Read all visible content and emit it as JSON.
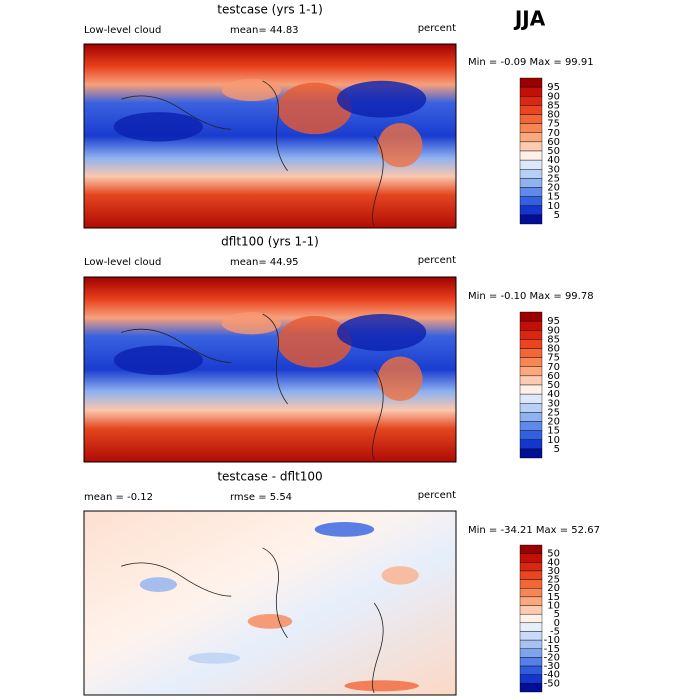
{
  "season": "JJA",
  "panels": [
    {
      "title": "testcase (yrs 1-1)",
      "left": "Low-level cloud",
      "center": "mean=  44.83",
      "units": "percent",
      "minmax": "Min =  -0.09 Max =  99.91",
      "colorbar": {
        "labels": [
          "95",
          "90",
          "85",
          "80",
          "75",
          "70",
          "60",
          "50",
          "40",
          "30",
          "25",
          "20",
          "15",
          "10",
          "5"
        ],
        "colors": [
          "#9b0000",
          "#c20f08",
          "#d92812",
          "#ea4520",
          "#f26638",
          "#f68656",
          "#faa97f",
          "#fccbb2",
          "#fff1e8",
          "#dde8fa",
          "#b9d0f5",
          "#8fb2f0",
          "#5f8ae9",
          "#3260e0",
          "#1535cf",
          "#000f96"
        ]
      }
    },
    {
      "title": "dflt100 (yrs 1-1)",
      "left": "Low-level cloud",
      "center": "mean=  44.95",
      "units": "percent",
      "minmax": "Min =  -0.10 Max =  99.78",
      "colorbar": {
        "labels": [
          "95",
          "90",
          "85",
          "80",
          "75",
          "70",
          "60",
          "50",
          "40",
          "30",
          "25",
          "20",
          "15",
          "10",
          "5"
        ],
        "colors": [
          "#9b0000",
          "#c20f08",
          "#d92812",
          "#ea4520",
          "#f26638",
          "#f68656",
          "#faa97f",
          "#fccbb2",
          "#fff1e8",
          "#dde8fa",
          "#b9d0f5",
          "#8fb2f0",
          "#5f8ae9",
          "#3260e0",
          "#1535cf",
          "#000f96"
        ]
      }
    },
    {
      "title": "testcase - dflt100",
      "left": "mean =  -0.12",
      "center": "rmse =   5.54",
      "units": "percent",
      "minmax": "Min = -34.21 Max =  52.67",
      "colorbar": {
        "labels": [
          "50",
          "40",
          "30",
          "25",
          "20",
          "15",
          "10",
          "5",
          "0",
          "-5",
          "-10",
          "-15",
          "-20",
          "-30",
          "-40",
          "-50"
        ],
        "colors": [
          "#9b0000",
          "#c20f08",
          "#d92812",
          "#ea4520",
          "#f26638",
          "#f68656",
          "#faa97f",
          "#fccbb2",
          "#fff1e8",
          "#e6eefb",
          "#c8daf7",
          "#a6c2f3",
          "#7fa4ee",
          "#5580e7",
          "#2f5bde",
          "#1535cf",
          "#000f96"
        ]
      }
    }
  ]
}
